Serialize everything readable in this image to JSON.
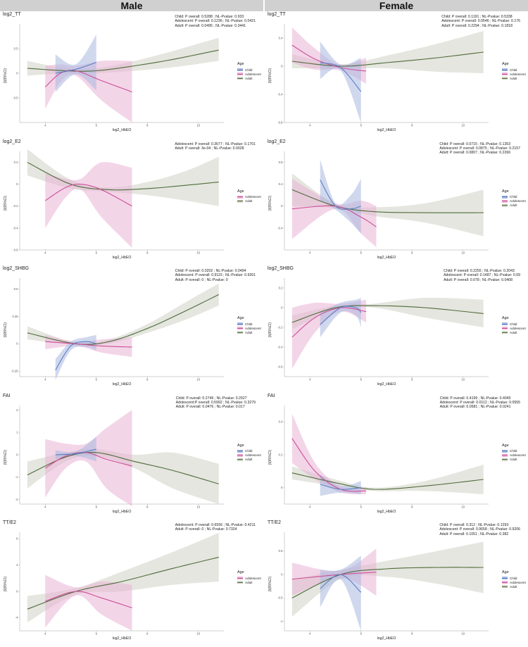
{
  "headers": {
    "male": "Male",
    "female": "Female"
  },
  "legend": {
    "title": "Age",
    "labels": {
      "Child": "Child",
      "Adolescent": "Adolescent",
      "Adult": "Adult"
    }
  },
  "colors": {
    "Child": "#5b7fc4",
    "Adolescent": "#cc4f97",
    "Adult": "#4d6b3a",
    "band_Child": "#aab8e0",
    "band_Adolescent": "#eab3d6",
    "band_Adult": "#cfd2c4"
  },
  "chart_data": [
    {
      "id": "male-tt",
      "type": "line",
      "title": "log2_TT",
      "xlabel": "log2_HbEO",
      "ylabel": "β(95%CI)",
      "xlim": [
        3,
        11
      ],
      "ylim": [
        -1.0,
        1.0
      ],
      "xticks": [
        4,
        6,
        8,
        10
      ],
      "yticks": [
        -0.5,
        0.0,
        0.5
      ],
      "stats": [
        "Child: P overall: 0.5288 ; NL-Pvalue: 0.933",
        "Adolescent: P overall: 0.1236 ; NL-Pvalue: 0.0421",
        "Adult: P overall: 0.0495 ; NL-Pvalue: 0.3441"
      ],
      "series": [
        {
          "name": "Child",
          "x": [
            4.4,
            5.2,
            6.0
          ],
          "y": [
            0.0,
            0.08,
            0.22
          ],
          "lo": [
            -0.38,
            -0.02,
            -0.35
          ],
          "hi": [
            0.38,
            0.18,
            0.78
          ]
        },
        {
          "name": "Adolescent",
          "x": [
            4.0,
            4.6,
            5.2,
            6.2,
            7.4
          ],
          "y": [
            -0.28,
            0.0,
            0.05,
            -0.15,
            -0.38
          ],
          "lo": [
            -0.72,
            -0.18,
            -0.05,
            -0.55,
            -1.0
          ],
          "hi": [
            0.15,
            0.18,
            0.15,
            0.25,
            0.25
          ]
        },
        {
          "name": "Adult",
          "x": [
            3.3,
            4.8,
            6.0,
            7.5,
            9.0,
            10.8
          ],
          "y": [
            0.1,
            0.05,
            0.05,
            0.15,
            0.28,
            0.47
          ],
          "lo": [
            -0.05,
            0.0,
            0.0,
            0.05,
            0.12,
            0.25
          ],
          "hi": [
            0.25,
            0.1,
            0.1,
            0.25,
            0.45,
            0.72
          ]
        }
      ]
    },
    {
      "id": "female-tt",
      "type": "line",
      "title": "log2_TT",
      "xlabel": "log2_HbEO",
      "ylabel": "β(95%CI)",
      "xlim": [
        3,
        11
      ],
      "ylim": [
        -0.8,
        0.6
      ],
      "xticks": [
        4,
        6,
        8,
        10
      ],
      "yticks": [
        -0.8,
        -0.4,
        0.0,
        0.4
      ],
      "stats": [
        "Child: P overall: 0.1191 ; NL-Pvalue: 0.5338",
        "Adolescent: P overall: 0.0546 ; NL-Pvalue: 0.176",
        "Adult: P overall: 0.2294 ; NL-Pvalue: 0.1818"
      ],
      "series": [
        {
          "name": "Child",
          "x": [
            4.4,
            5.2,
            6.0
          ],
          "y": [
            0.05,
            -0.02,
            -0.36
          ],
          "lo": [
            -0.18,
            -0.06,
            -0.8
          ],
          "hi": [
            0.35,
            0.02,
            0.12
          ]
        },
        {
          "name": "Adolescent",
          "x": [
            3.3,
            4.2,
            5.2,
            6.2
          ],
          "y": [
            0.3,
            0.1,
            -0.02,
            -0.07
          ],
          "lo": [
            0.05,
            -0.05,
            -0.06,
            -0.25
          ],
          "hi": [
            0.55,
            0.25,
            0.02,
            0.12
          ]
        },
        {
          "name": "Adult",
          "x": [
            3.3,
            5.2,
            7.0,
            9.0,
            10.8
          ],
          "y": [
            0.07,
            0.0,
            0.05,
            0.12,
            0.2
          ],
          "lo": [
            -0.03,
            -0.03,
            -0.03,
            -0.08,
            -0.1
          ],
          "hi": [
            0.17,
            0.03,
            0.15,
            0.32,
            0.5
          ]
        }
      ]
    },
    {
      "id": "male-e2",
      "type": "line",
      "title": "log2_E2",
      "xlabel": "log2_HbEO",
      "ylabel": "β(95%CI)",
      "xlim": [
        3,
        11
      ],
      "ylim": [
        -0.6,
        0.3
      ],
      "xticks": [
        4,
        6,
        8,
        10
      ],
      "yticks": [
        -0.6,
        -0.4,
        -0.2,
        0.0,
        0.2
      ],
      "stats": [
        "Adolescent: P overall: 0.3677 ; NL-Pvalue: 0.1701",
        "Adult: P overall: 3e-04 ; NL-Pvalue: 0.0028"
      ],
      "series": [
        {
          "name": "Adolescent",
          "x": [
            4.0,
            4.8,
            5.4,
            6.2,
            7.4
          ],
          "y": [
            -0.15,
            -0.03,
            0.0,
            -0.05,
            -0.2
          ],
          "lo": [
            -0.4,
            -0.12,
            -0.05,
            -0.3,
            -0.58
          ],
          "hi": [
            0.1,
            0.05,
            0.05,
            0.2,
            0.15
          ]
        },
        {
          "name": "Adult",
          "x": [
            3.3,
            5.0,
            6.5,
            8.0,
            9.5,
            10.8
          ],
          "y": [
            0.2,
            0.0,
            -0.05,
            -0.04,
            -0.01,
            0.02
          ],
          "lo": [
            0.08,
            -0.04,
            -0.07,
            -0.1,
            -0.15,
            -0.2
          ],
          "hi": [
            0.32,
            0.04,
            -0.03,
            0.02,
            0.12,
            0.25
          ]
        }
      ]
    },
    {
      "id": "female-e2",
      "type": "line",
      "title": "log2_E2",
      "xlabel": "log2_HbEO",
      "ylabel": "β(95%CI)",
      "xlim": [
        3,
        11
      ],
      "ylim": [
        -0.8,
        1.0
      ],
      "xticks": [
        4,
        6,
        8,
        10
      ],
      "yticks": [
        -0.4,
        0.0,
        0.4,
        0.8
      ],
      "stats": [
        "Child: P overall: 0.0715 ; NL-Pvalue: 0.1353",
        "Adolescent: P overall: 0.0875 ; NL-Pvalue: 0.2157",
        "Adult: P overall: 0.0807 ; NL-Pvalue: 0.2266"
      ],
      "series": [
        {
          "name": "Child",
          "x": [
            4.4,
            5.0,
            5.6,
            6.0
          ],
          "y": [
            0.48,
            0.0,
            -0.05,
            0.0
          ],
          "lo": [
            0.1,
            -0.06,
            -0.3,
            -0.5
          ],
          "hi": [
            0.85,
            0.05,
            0.2,
            0.5
          ]
        },
        {
          "name": "Adolescent",
          "x": [
            3.3,
            5.0,
            6.0,
            6.6
          ],
          "y": [
            -0.05,
            0.0,
            -0.2,
            -0.38
          ],
          "lo": [
            -0.6,
            -0.05,
            -0.5,
            -0.75
          ],
          "hi": [
            0.5,
            0.05,
            0.1,
            0.0
          ]
        },
        {
          "name": "Adult",
          "x": [
            3.3,
            5.0,
            6.5,
            8.5,
            10.8
          ],
          "y": [
            0.3,
            0.0,
            -0.1,
            -0.12,
            -0.12
          ],
          "lo": [
            0.0,
            -0.04,
            -0.18,
            -0.3,
            -0.55
          ],
          "hi": [
            0.6,
            0.04,
            -0.02,
            0.05,
            0.3
          ]
        }
      ]
    },
    {
      "id": "male-shbg",
      "type": "line",
      "title": "log2_SHBG",
      "xlabel": "log2_HbEO",
      "ylabel": "β(95%CI)",
      "xlim": [
        3,
        11
      ],
      "ylim": [
        -0.3,
        0.6
      ],
      "xticks": [
        4,
        6,
        8,
        10
      ],
      "yticks": [
        -0.25,
        0.0,
        0.25,
        0.5
      ],
      "stats": [
        "Child: P overall: 0.0202 ; NL-Pvalue: 0.0494",
        "Adolescent: P overall: 0.9115 ; NL-Pvalue: 0.9261",
        "Adult:  P overall: 0 ; NL-Pvalue: 0"
      ],
      "series": [
        {
          "name": "Child",
          "x": [
            4.4,
            5.0,
            5.6,
            6.0
          ],
          "y": [
            -0.24,
            -0.02,
            0.02,
            0.0
          ],
          "lo": [
            -0.33,
            -0.06,
            -0.03,
            -0.06
          ],
          "hi": [
            -0.14,
            0.02,
            0.06,
            0.08
          ]
        },
        {
          "name": "Adolescent",
          "x": [
            4.0,
            5.2,
            6.2,
            7.4
          ],
          "y": [
            0.02,
            0.0,
            -0.02,
            -0.03
          ],
          "lo": [
            -0.05,
            -0.02,
            -0.08,
            -0.12
          ],
          "hi": [
            0.08,
            0.02,
            0.04,
            0.06
          ]
        },
        {
          "name": "Adult",
          "x": [
            3.3,
            5.2,
            6.5,
            8.0,
            9.5,
            10.8
          ],
          "y": [
            0.1,
            0.0,
            0.02,
            0.14,
            0.3,
            0.45
          ],
          "lo": [
            0.04,
            -0.01,
            0.0,
            0.1,
            0.22,
            0.35
          ],
          "hi": [
            0.16,
            0.01,
            0.04,
            0.18,
            0.38,
            0.55
          ]
        }
      ]
    },
    {
      "id": "female-shbg",
      "type": "line",
      "title": "log2_SHBG",
      "xlabel": "log2_HbEO",
      "ylabel": "β(95%CI)",
      "xlim": [
        3,
        11
      ],
      "ylim": [
        -0.7,
        0.3
      ],
      "xticks": [
        4,
        6,
        8,
        10
      ],
      "yticks": [
        -0.6,
        -0.4,
        -0.2,
        0.0,
        0.2
      ],
      "stats": [
        "Child: P overall: 0.2255 ; NL-Pvalue: 0.2043",
        "Adolescent: P overall: 0.1487 ; NL-Pvalue: 0.09",
        "Adult: P overall: 0.078 ; NL-Pvalue: 0.0408"
      ],
      "series": [
        {
          "name": "Child",
          "x": [
            4.4,
            5.2,
            5.8,
            6.0
          ],
          "y": [
            -0.17,
            0.0,
            0.0,
            -0.05
          ],
          "lo": [
            -0.3,
            -0.05,
            -0.08,
            -0.2
          ],
          "hi": [
            -0.05,
            0.05,
            0.08,
            0.1
          ]
        },
        {
          "name": "Adolescent",
          "x": [
            3.3,
            4.2,
            5.2,
            6.2
          ],
          "y": [
            -0.3,
            -0.1,
            0.0,
            -0.04
          ],
          "lo": [
            -0.62,
            -0.25,
            -0.04,
            -0.15
          ],
          "hi": [
            0.0,
            0.05,
            0.04,
            0.08
          ]
        },
        {
          "name": "Adult",
          "x": [
            3.3,
            5.0,
            6.5,
            8.5,
            10.8
          ],
          "y": [
            -0.15,
            0.0,
            0.02,
            0.0,
            -0.06
          ],
          "lo": [
            -0.22,
            -0.02,
            0.0,
            -0.1,
            -0.2
          ],
          "hi": [
            -0.08,
            0.02,
            0.04,
            0.1,
            0.08
          ]
        }
      ]
    },
    {
      "id": "male-fai",
      "type": "line",
      "title": "FAI",
      "xlabel": "log2_HbEO",
      "ylabel": "β(95%CI)",
      "xlim": [
        3,
        11
      ],
      "ylim": [
        -2.2,
        2.2
      ],
      "xticks": [
        4,
        6,
        8,
        10
      ],
      "yticks": [
        -2,
        -1,
        0,
        1,
        2
      ],
      "stats": [
        "Child: P overall: 0.2749 ; NL-Pvalue: 0.2927",
        "Adolescent:P overall: 0.5992 ; NL-Pvalue: 0.3279",
        "Adult: P overall: 0.0476 ; NL-Pvalue: 0.017"
      ],
      "series": [
        {
          "name": "Child",
          "x": [
            4.4,
            5.2,
            6.0
          ],
          "y": [
            0.0,
            0.05,
            0.25
          ],
          "lo": [
            -0.2,
            -0.05,
            -0.3
          ],
          "hi": [
            0.2,
            0.15,
            0.8
          ]
        },
        {
          "name": "Adolescent",
          "x": [
            4.0,
            4.8,
            5.6,
            6.4,
            7.4
          ],
          "y": [
            -0.6,
            -0.05,
            0.1,
            -0.2,
            -0.5
          ],
          "lo": [
            -1.9,
            -0.6,
            -0.3,
            -1.5,
            -2.3
          ],
          "hi": [
            0.7,
            0.5,
            0.5,
            1.2,
            2.0
          ]
        },
        {
          "name": "Adult",
          "x": [
            3.3,
            4.8,
            6.0,
            7.5,
            9.0,
            10.8
          ],
          "y": [
            -0.9,
            -0.1,
            0.1,
            -0.3,
            -0.7,
            -1.3
          ],
          "lo": [
            -1.5,
            -0.3,
            -0.05,
            -0.6,
            -1.5,
            -2.2
          ],
          "hi": [
            -0.3,
            0.1,
            0.25,
            0.0,
            0.1,
            -0.4
          ]
        }
      ]
    },
    {
      "id": "female-fai",
      "type": "line",
      "title": "FAI",
      "xlabel": "log2_HbEO",
      "ylabel": "β(95%CI)",
      "xlim": [
        3,
        11
      ],
      "ylim": [
        -0.1,
        0.5
      ],
      "xticks": [
        4,
        6,
        8,
        10
      ],
      "yticks": [
        0.0,
        0.2,
        0.4
      ],
      "stats": [
        "Child: P overall: 0.4199 ; NL-Pvalue: 0.4045",
        "Adolescent: P overall: 0.0112 ; NL-Pvalue: 0.0555",
        "Adult: P overall: 0.0581 ; NL-Pvalue: 0.0241"
      ],
      "series": [
        {
          "name": "Child",
          "x": [
            4.4,
            5.2,
            6.0
          ],
          "y": [
            0.02,
            -0.01,
            0.0
          ],
          "lo": [
            -0.05,
            -0.03,
            -0.04
          ],
          "hi": [
            0.08,
            0.01,
            0.04
          ]
        },
        {
          "name": "Adolescent",
          "x": [
            3.3,
            4.2,
            5.2,
            6.2
          ],
          "y": [
            0.3,
            0.1,
            -0.01,
            -0.02
          ],
          "lo": [
            0.15,
            0.05,
            -0.03,
            -0.04
          ],
          "hi": [
            0.45,
            0.15,
            0.01,
            0.0
          ]
        },
        {
          "name": "Adult",
          "x": [
            3.3,
            5.0,
            6.5,
            8.5,
            10.8
          ],
          "y": [
            0.09,
            0.03,
            -0.01,
            0.01,
            0.05
          ],
          "lo": [
            0.05,
            0.01,
            -0.02,
            -0.02,
            -0.04
          ],
          "hi": [
            0.13,
            0.05,
            0.0,
            0.04,
            0.14
          ]
        }
      ]
    },
    {
      "id": "male-tte2",
      "type": "line",
      "title": "TT/E2",
      "xlabel": "log2_HbEO",
      "ylabel": "β(95%CI)",
      "xlim": [
        3,
        11
      ],
      "ylim": [
        -6.0,
        9.0
      ],
      "xticks": [
        4,
        6,
        8,
        10
      ],
      "yticks": [
        -4,
        0,
        4,
        8
      ],
      "stats": [
        "Adolescent: P overall: 0.6556 ; NL-Pvalue: 0.4211",
        "Adult: P overall: 0 ; NL-Pvalue: 0.7324"
      ],
      "series": [
        {
          "name": "Adolescent",
          "x": [
            4.0,
            5.2,
            6.2,
            7.4
          ],
          "y": [
            -1.5,
            0.0,
            -1.0,
            -2.5
          ],
          "lo": [
            -5.5,
            -0.6,
            -3.5,
            -6.0
          ],
          "hi": [
            2.5,
            0.6,
            1.5,
            1.0
          ]
        },
        {
          "name": "Adult",
          "x": [
            3.3,
            5.2,
            7.0,
            9.0,
            10.8
          ],
          "y": [
            -2.7,
            0.0,
            1.5,
            3.5,
            5.2
          ],
          "lo": [
            -4.7,
            -0.5,
            0.0,
            1.0,
            1.5
          ],
          "hi": [
            -0.7,
            0.5,
            3.0,
            6.0,
            8.9
          ]
        }
      ]
    },
    {
      "id": "female-tte2",
      "type": "line",
      "title": "TT/E2",
      "xlabel": "log2_HbEO",
      "ylabel": "β(95%CI)",
      "xlim": [
        3,
        11
      ],
      "ylim": [
        -1.2,
        0.9
      ],
      "xticks": [
        4,
        6,
        8,
        10
      ],
      "yticks": [
        -1.0,
        -0.5,
        0.0,
        0.5
      ],
      "stats": [
        "Child: P overall: 0.312 ; NL-Pvalue: 0.1293",
        "Adolescent: P overall: 0.9658 ; NL-Pvalue: 0.9206",
        "Adult: P overall: 0.1051 ; NL-Pvalue: 0.382"
      ],
      "series": [
        {
          "name": "Child",
          "x": [
            4.4,
            5.2,
            6.0
          ],
          "y": [
            -0.3,
            0.0,
            -0.38
          ],
          "lo": [
            -0.7,
            -0.1,
            -1.2
          ],
          "hi": [
            0.1,
            0.1,
            0.4
          ]
        },
        {
          "name": "Adolescent",
          "x": [
            3.3,
            5.2,
            6.6
          ],
          "y": [
            -0.1,
            0.0,
            0.05
          ],
          "lo": [
            -0.45,
            -0.08,
            -0.45
          ],
          "hi": [
            0.25,
            0.08,
            0.55
          ]
        },
        {
          "name": "Adult",
          "x": [
            3.3,
            5.2,
            7.0,
            9.0,
            10.8
          ],
          "y": [
            -0.5,
            0.0,
            0.12,
            0.15,
            0.15
          ],
          "lo": [
            -0.9,
            -0.1,
            -0.05,
            -0.2,
            -0.4
          ],
          "hi": [
            -0.1,
            0.1,
            0.29,
            0.5,
            0.7
          ]
        }
      ]
    }
  ]
}
